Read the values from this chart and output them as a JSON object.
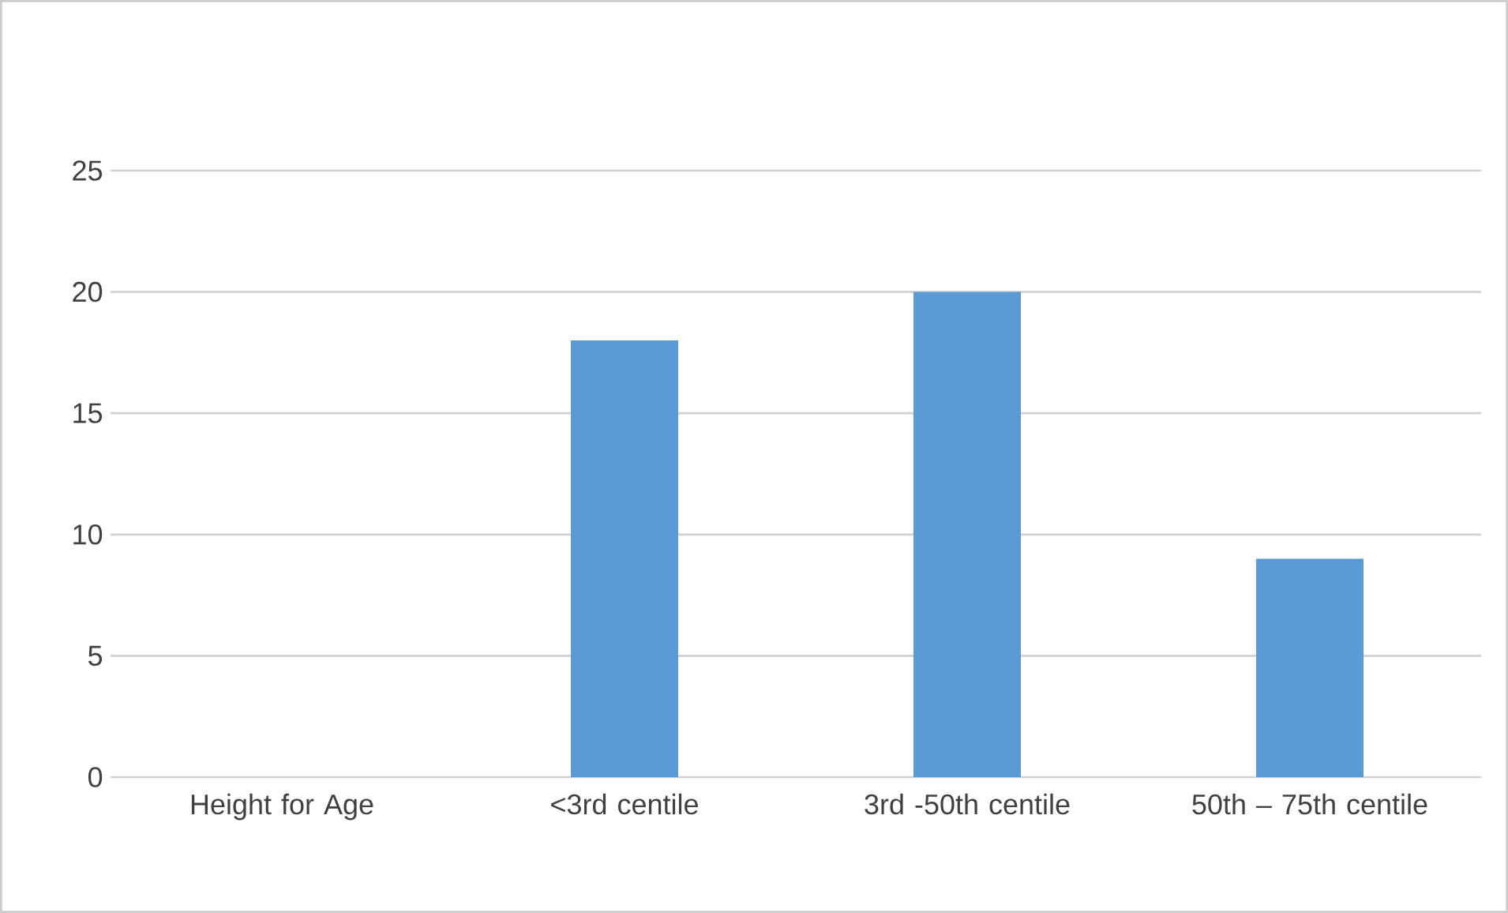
{
  "chart_data": {
    "type": "bar",
    "categories": [
      "Height for Age",
      "<3rd centile",
      "3rd -50th centile",
      "50th – 75th centile"
    ],
    "values": [
      null,
      18,
      20,
      9
    ],
    "color": "#5b9bd5",
    "ylim": [
      0,
      25
    ],
    "yticks": [
      0,
      5,
      10,
      15,
      20,
      25
    ],
    "grid": "y"
  }
}
